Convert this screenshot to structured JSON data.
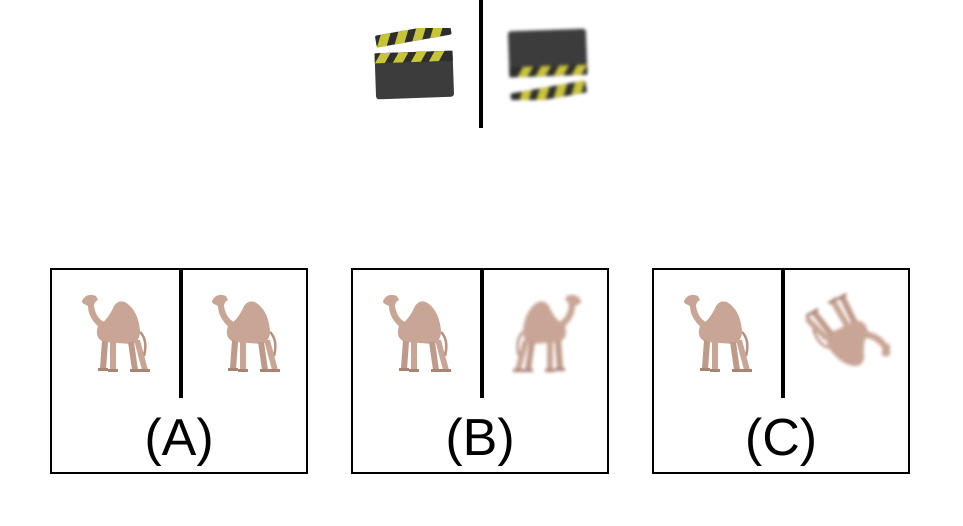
{
  "reference": {
    "left_icon": "clapperboard-icon",
    "right_icon": "clapperboard-icon"
  },
  "options": [
    {
      "label": "(A)",
      "left_icon": "camel-icon",
      "right_icon": "camel-icon"
    },
    {
      "label": "(B)",
      "left_icon": "camel-icon",
      "right_icon": "camel-icon"
    },
    {
      "label": "(C)",
      "left_icon": "camel-icon",
      "right_icon": "camel-icon"
    }
  ],
  "colors": {
    "camel": "#c9a595",
    "clapper_body": "#3a3a3a",
    "clapper_stripe": "#c8c43a",
    "line": "#000000"
  }
}
